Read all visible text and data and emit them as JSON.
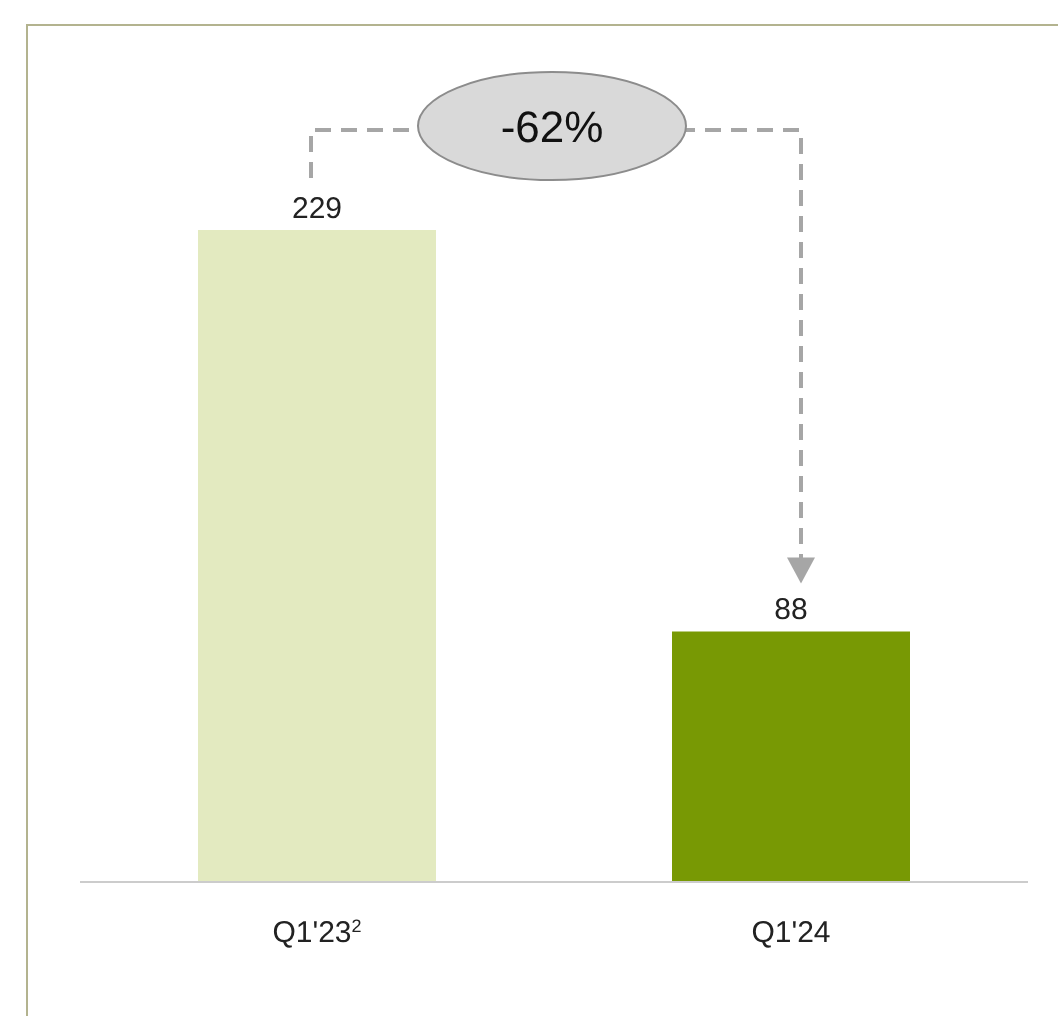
{
  "chart_data": {
    "type": "bar",
    "categories": [
      "Q1'23$^{2}$",
      "Q1'24"
    ],
    "values": [
      229,
      88
    ],
    "colors": [
      "#e3eac0",
      "#789904"
    ],
    "data_labels": true,
    "annotations": [
      "-62%"
    ]
  }
}
